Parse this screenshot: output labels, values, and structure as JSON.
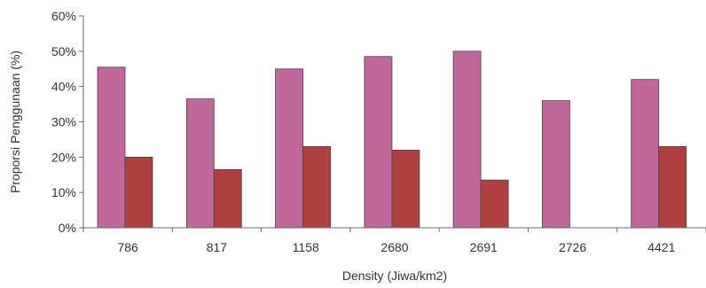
{
  "chart_data": {
    "type": "bar",
    "categories": [
      "786",
      "817",
      "1158",
      "2680",
      "2691",
      "2726",
      "4421"
    ],
    "series": [
      {
        "color": "#c0679b",
        "values": [
          45.5,
          36.5,
          45,
          48.5,
          50,
          36,
          42
        ]
      },
      {
        "color": "#b0403f",
        "values": [
          20,
          16.5,
          23,
          22,
          13.5,
          null,
          23
        ]
      }
    ],
    "xlabel": "Density (Jiwa/km2)",
    "ylabel": "Proporsi Penggunaan (%)",
    "ylim": [
      0,
      60
    ],
    "yticks": [
      "0%",
      "10%",
      "20%",
      "30%",
      "40%",
      "50%",
      "60%"
    ],
    "grid": false,
    "legend": "none"
  }
}
